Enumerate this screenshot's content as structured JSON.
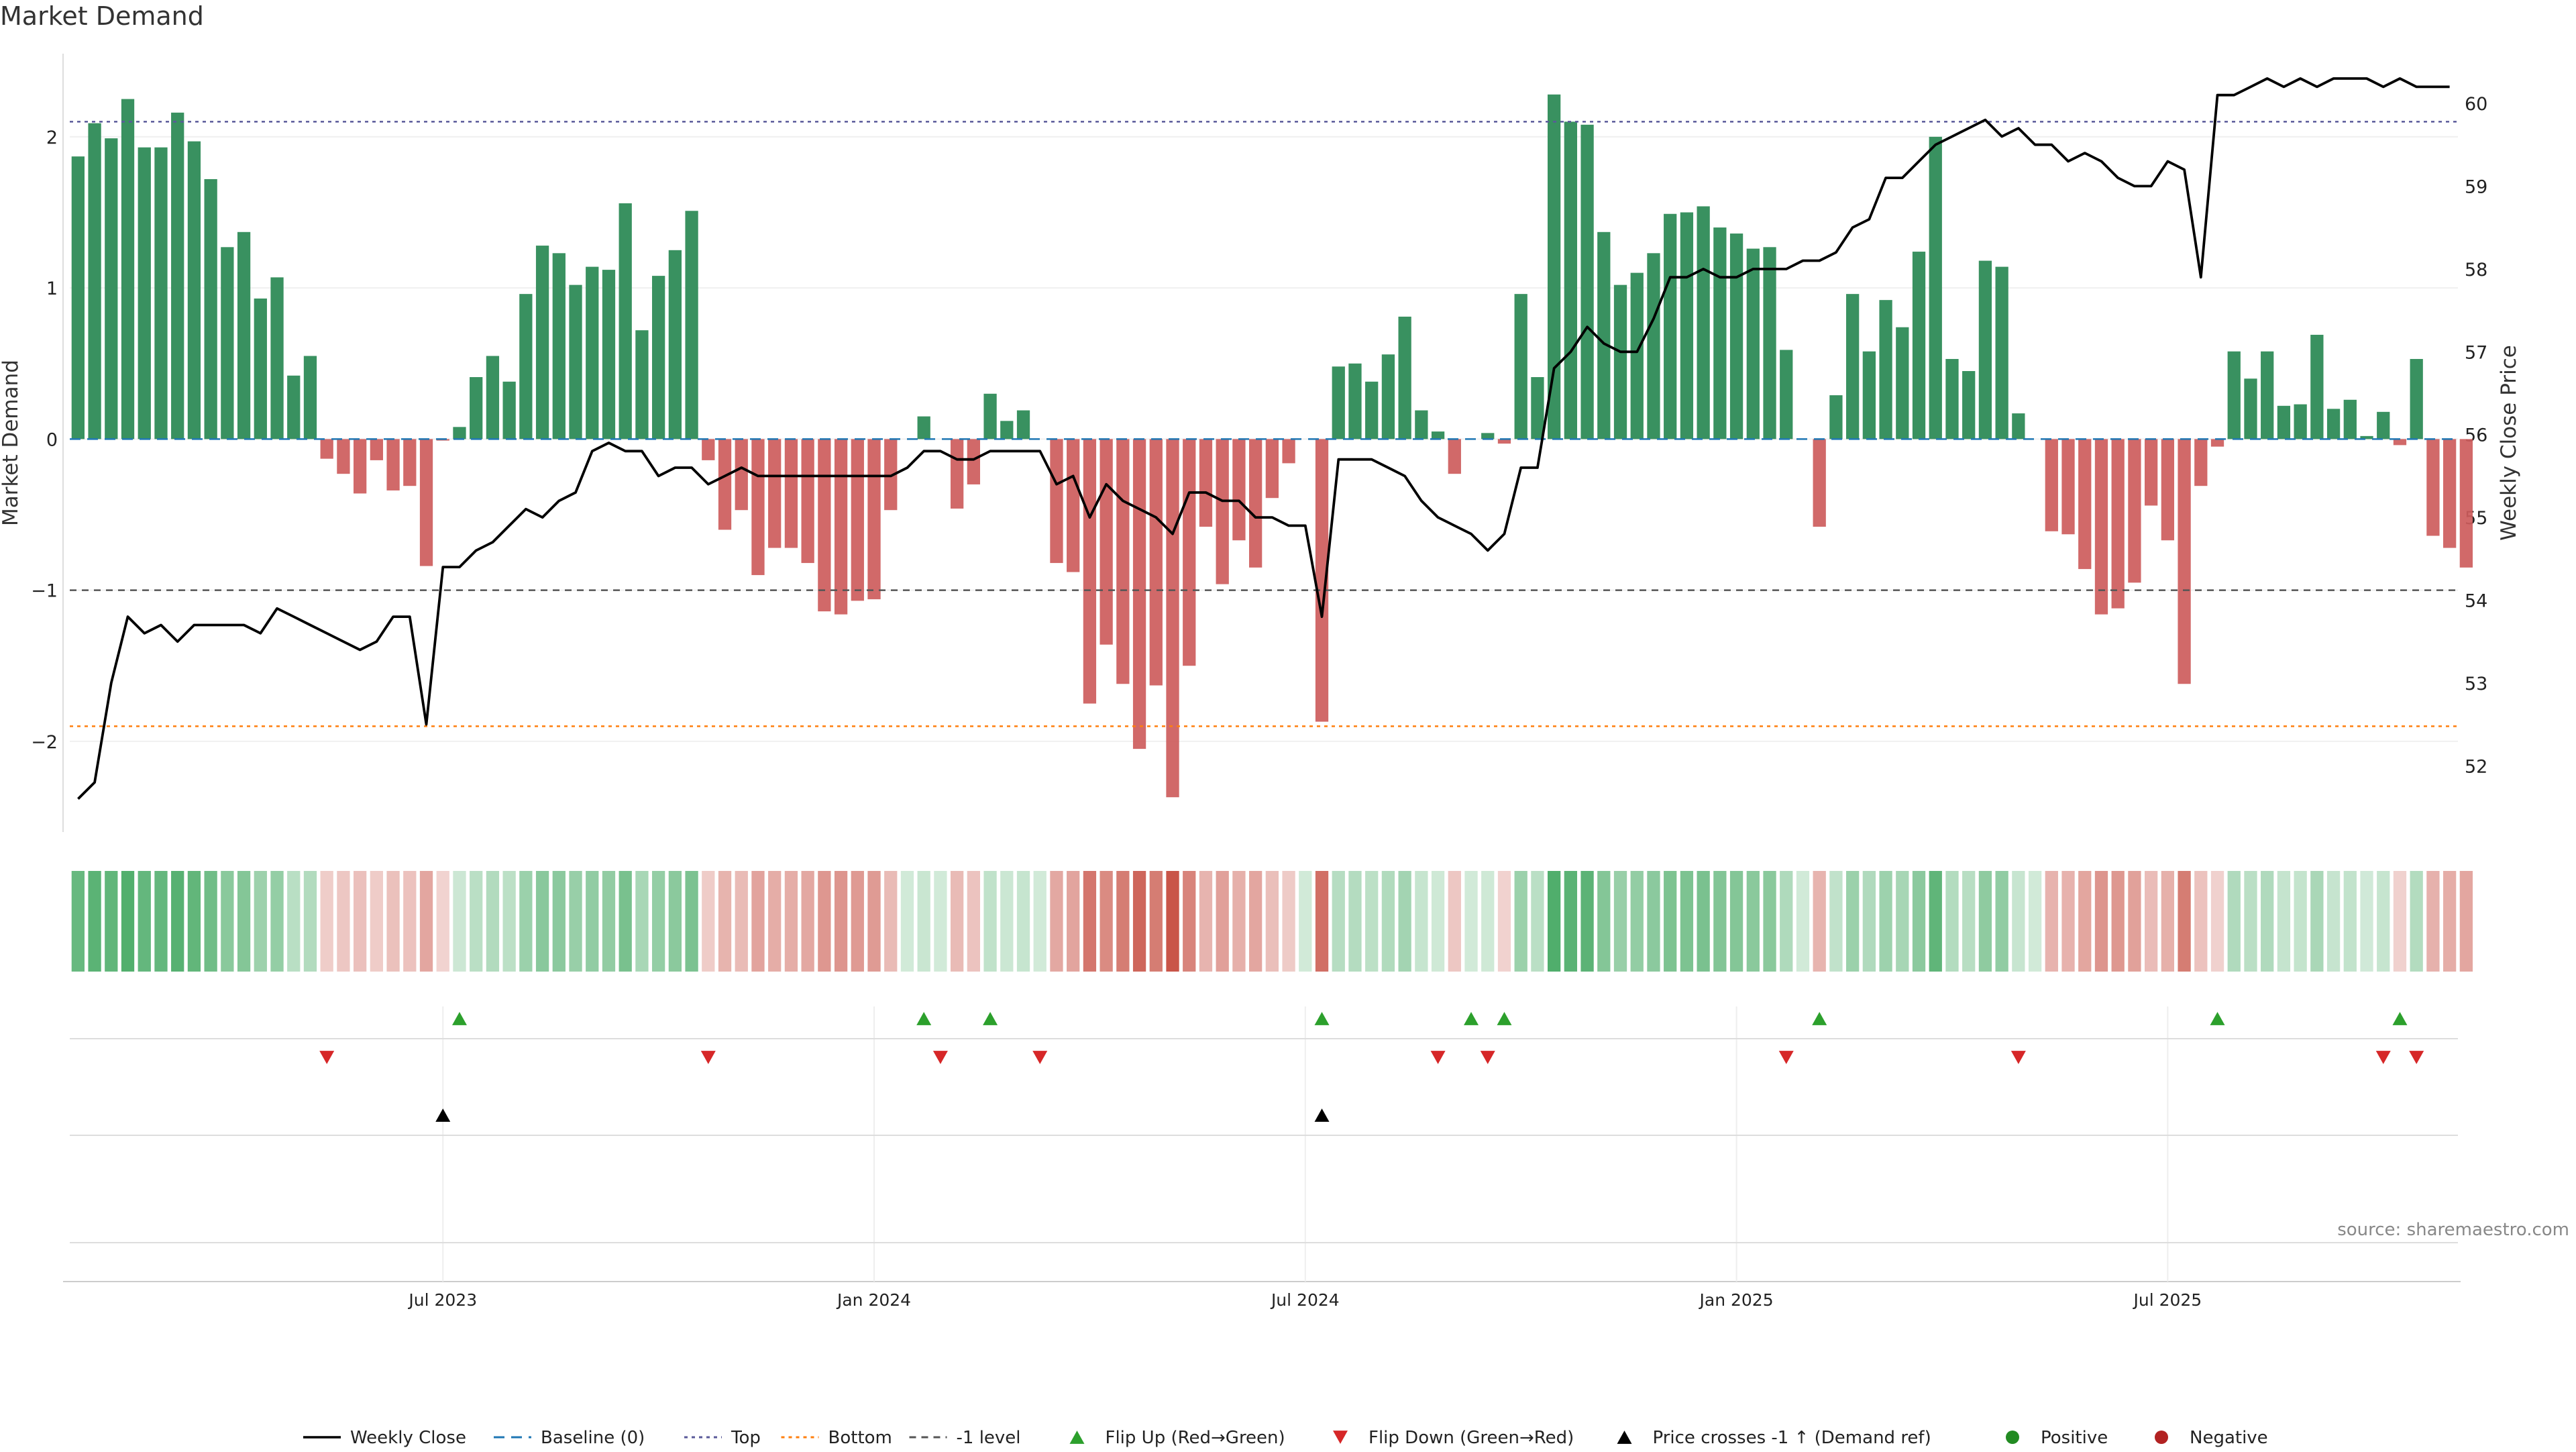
{
  "chart_data": {
    "type": "bar",
    "title": "Market Demand",
    "source": "source: sharemaestro.com",
    "ylabel_left": "Market Demand",
    "ylabel_right": "Weekly Close Price",
    "ylim_left": [
      -2.6,
      2.55
    ],
    "ylim_right": [
      51.2,
      60.6
    ],
    "yticks_left": [
      "2",
      "1",
      "0",
      "−1",
      "−2"
    ],
    "yticks_left_values": [
      2,
      1,
      0,
      -1,
      -2
    ],
    "yticks_right": [
      "60",
      "59",
      "58",
      "57",
      "56",
      "55",
      "54",
      "53",
      "52"
    ],
    "yticks_right_values": [
      60,
      59,
      58,
      57,
      56,
      55,
      54,
      53,
      52
    ],
    "xticks": [
      "Jul 2023",
      "Jan 2024",
      "Jul 2024",
      "Jan 2025",
      "Jul 2025"
    ],
    "xtick_week_index": [
      22,
      48,
      74,
      100,
      126
    ],
    "week_count": 144,
    "reference_lines": {
      "top": 2.1,
      "baseline": 0,
      "bottom": -1.9,
      "minus_one": -1
    },
    "demand": [
      1.87,
      2.09,
      1.99,
      2.25,
      1.93,
      1.93,
      2.16,
      1.97,
      1.72,
      1.27,
      1.37,
      0.93,
      1.07,
      0.42,
      0.55,
      -0.13,
      -0.23,
      -0.36,
      -0.14,
      -0.34,
      -0.31,
      -0.84,
      -0.01,
      0.08,
      0.41,
      0.55,
      0.38,
      0.96,
      1.28,
      1.23,
      1.02,
      1.14,
      1.12,
      1.56,
      0.72,
      1.08,
      1.25,
      1.51,
      -0.14,
      -0.6,
      -0.47,
      -0.9,
      -0.72,
      -0.72,
      -0.82,
      -1.14,
      -1.16,
      -1.07,
      -1.06,
      -0.47,
      0,
      0.15,
      0,
      -0.46,
      -0.3,
      0.3,
      0.12,
      0.19,
      0,
      -0.82,
      -0.88,
      -1.75,
      -1.36,
      -1.62,
      -2.05,
      -1.63,
      -2.37,
      -1.5,
      -0.58,
      -0.96,
      -0.67,
      -0.85,
      -0.39,
      -0.16,
      0,
      -1.87,
      0.48,
      0.5,
      0.38,
      0.56,
      0.81,
      0.19,
      0.05,
      -0.23,
      0,
      0.04,
      -0.03,
      0.96,
      0.41,
      2.28,
      2.1,
      2.08,
      1.37,
      1.02,
      1.1,
      1.23,
      1.49,
      1.5,
      1.54,
      1.4,
      1.36,
      1.26,
      1.27,
      0.59,
      0,
      -0.58,
      0.29,
      0.96,
      0.58,
      0.92,
      0.74,
      1.24,
      2.0,
      0.53,
      0.45,
      1.18,
      1.14,
      0.17,
      0,
      -0.61,
      -0.63,
      -0.86,
      -1.16,
      -1.12,
      -0.95,
      -0.44,
      -0.67,
      -1.62,
      -0.31,
      -0.05,
      0.58,
      0.4,
      0.58,
      0.22,
      0.23,
      0.69,
      0.2,
      0.26,
      0.02,
      0.18,
      -0.04,
      0.53,
      -0.64,
      -0.72,
      -0.85
    ],
    "weekly_close": [
      51.6,
      51.8,
      53.0,
      53.8,
      53.6,
      53.7,
      53.5,
      53.7,
      53.7,
      53.7,
      53.7,
      53.6,
      53.9,
      53.8,
      53.7,
      53.6,
      53.5,
      53.4,
      53.5,
      53.8,
      53.8,
      52.5,
      54.4,
      54.4,
      54.6,
      54.7,
      54.9,
      55.1,
      55.0,
      55.2,
      55.3,
      55.8,
      55.9,
      55.8,
      55.8,
      55.5,
      55.6,
      55.6,
      55.4,
      55.5,
      55.6,
      55.5,
      55.5,
      55.5,
      55.5,
      55.5,
      55.5,
      55.5,
      55.5,
      55.5,
      55.6,
      55.8,
      55.8,
      55.7,
      55.7,
      55.8,
      55.8,
      55.8,
      55.8,
      55.4,
      55.5,
      55.0,
      55.4,
      55.2,
      55.1,
      55.0,
      54.8,
      55.3,
      55.3,
      55.2,
      55.2,
      55.0,
      55.0,
      54.9,
      54.9,
      53.8,
      55.7,
      55.7,
      55.7,
      55.6,
      55.5,
      55.2,
      55.0,
      54.9,
      54.8,
      54.6,
      54.8,
      55.6,
      55.6,
      56.8,
      57.0,
      57.3,
      57.1,
      57.0,
      57.0,
      57.4,
      57.9,
      57.9,
      58.0,
      57.9,
      57.9,
      58.0,
      58.0,
      58.0,
      58.1,
      58.1,
      58.2,
      58.5,
      58.6,
      59.1,
      59.1,
      59.3,
      59.5,
      59.6,
      59.7,
      59.8,
      59.6,
      59.7,
      59.5,
      59.5,
      59.3,
      59.4,
      59.3,
      59.1,
      59.0,
      59.0,
      59.3,
      59.2,
      57.9,
      60.1,
      60.1,
      60.2,
      60.3,
      60.2,
      60.3,
      60.2,
      60.3,
      60.3,
      60.3,
      60.2,
      60.3,
      60.2,
      60.2,
      60.2
    ],
    "flip_up_weeks": [
      23,
      51,
      55,
      75,
      84,
      86,
      105,
      129,
      140
    ],
    "flip_down_weeks": [
      15,
      38,
      52,
      58,
      82,
      85,
      103,
      117,
      139,
      141
    ],
    "price_cross_weeks": [
      22,
      75
    ],
    "colors": {
      "positive": "#2e8b57",
      "negative": "#cd5c5c",
      "close_line": "#000000",
      "baseline": "#1f77b4",
      "top": "#5a5a9a",
      "bottom": "#ff7f0e",
      "minus_one": "#555555",
      "flip_up": "#2ca02c",
      "flip_down": "#d62728",
      "price_cross": "#000000",
      "positive_dot": "#228b22",
      "negative_dot": "#b22222"
    },
    "legend": [
      {
        "label": "Weekly Close",
        "symbol": "line"
      },
      {
        "label": "Baseline (0)",
        "symbol": "dash"
      },
      {
        "label": "Top",
        "symbol": "dot-line"
      },
      {
        "label": "Bottom",
        "symbol": "dot-line-orange"
      },
      {
        "label": "-1 level",
        "symbol": "dash-gray"
      },
      {
        "label": "Flip Up (Red→Green)",
        "symbol": "tri-up-green"
      },
      {
        "label": "Flip Down (Green→Red)",
        "symbol": "tri-down-red"
      },
      {
        "label": "Price crosses -1 ↑ (Demand ref)",
        "symbol": "tri-up-black"
      },
      {
        "label": "Positive",
        "symbol": "dot-green"
      },
      {
        "label": "Negative",
        "symbol": "dot-red"
      }
    ],
    "legend_position": "bottom-center"
  }
}
